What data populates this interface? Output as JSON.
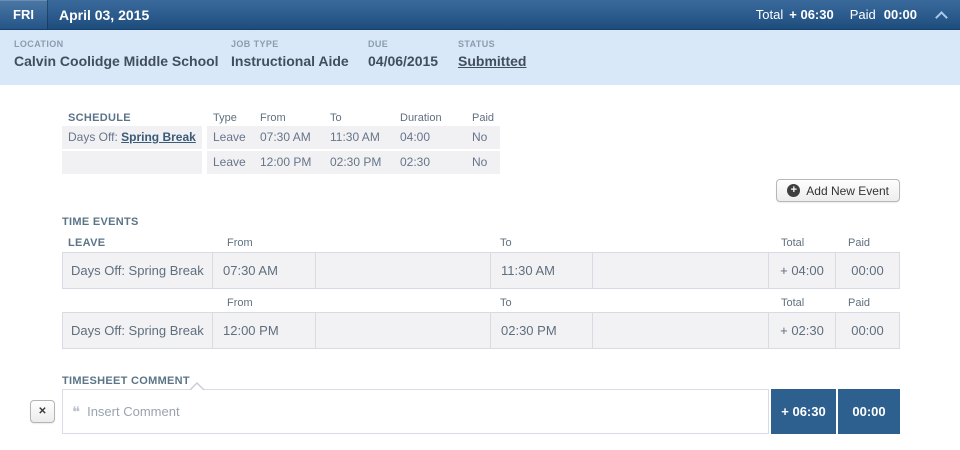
{
  "header": {
    "day": "FRI",
    "date": "April 03, 2015",
    "total_label": "Total",
    "total_value": "+ 06:30",
    "paid_label": "Paid",
    "paid_value": "00:00"
  },
  "details": {
    "location_label": "LOCATION",
    "location_value": "Calvin Coolidge Middle School",
    "job_type_label": "JOB TYPE",
    "job_type_value": "Instructional Aide",
    "due_label": "DUE",
    "due_value": "04/06/2015",
    "status_label": "STATUS",
    "status_value": "Submitted"
  },
  "schedule": {
    "title": "SCHEDULE",
    "columns": {
      "type": "Type",
      "from": "From",
      "to": "To",
      "duration": "Duration",
      "paid": "Paid"
    },
    "rows": [
      {
        "label_prefix": "Days Off: ",
        "label_link": "Spring Break",
        "type": "Leave",
        "from": "07:30 AM",
        "to": "11:30 AM",
        "duration": "04:00",
        "paid": "No"
      },
      {
        "label_prefix": "",
        "label_link": "",
        "type": "Leave",
        "from": "12:00 PM",
        "to": "02:30 PM",
        "duration": "02:30",
        "paid": "No"
      }
    ]
  },
  "add_event": {
    "label": "Add New Event",
    "icon_glyph": "+"
  },
  "time_events": {
    "title": "TIME EVENTS",
    "columns": {
      "from": "From",
      "to": "To",
      "total": "Total",
      "paid": "Paid"
    },
    "groups": [
      {
        "heading": "LEAVE",
        "row": {
          "label": "Days Off: Spring Break",
          "from": "07:30 AM",
          "to": "11:30 AM",
          "total": "+ 04:00",
          "paid": "00:00"
        }
      },
      {
        "heading": "",
        "row": {
          "label": "Days Off: Spring Break",
          "from": "12:00 PM",
          "to": "02:30 PM",
          "total": "+ 02:30",
          "paid": "00:00"
        }
      }
    ]
  },
  "comment": {
    "title": "TIMESHEET COMMENT",
    "close_glyph": "✕",
    "quote_glyph": "❝",
    "placeholder": "Insert Comment",
    "total": "+ 06:30",
    "paid": "00:00"
  },
  "colors": {
    "header_blue_top": "#3a6a9c",
    "header_blue_bottom": "#1d4c7c",
    "subheader_bg": "#d9e8f8",
    "accent_blue": "#2d608f",
    "row_grey": "#f1f1f4"
  }
}
